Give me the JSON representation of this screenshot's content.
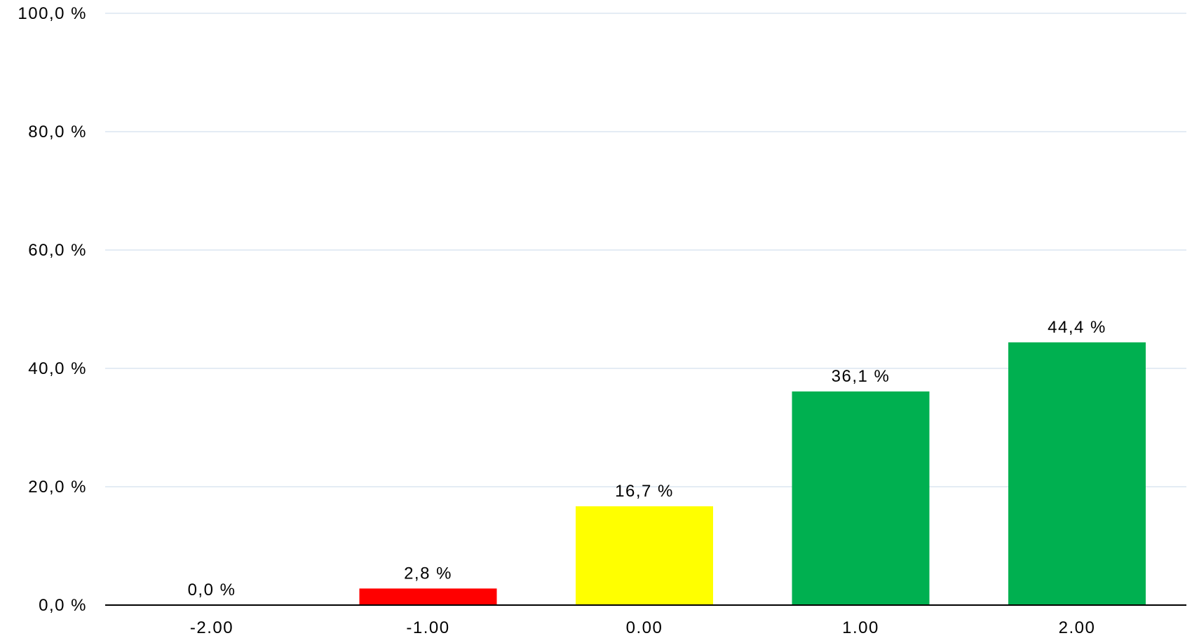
{
  "chart_data": {
    "type": "bar",
    "categories": [
      "-2.00",
      "-1.00",
      "0.00",
      "1.00",
      "2.00"
    ],
    "values": [
      0.0,
      2.8,
      16.7,
      36.1,
      44.4
    ],
    "value_labels": [
      "0,0 %",
      "2,8 %",
      "16,7 %",
      "36,1 %",
      "44,4 %"
    ],
    "bar_colors": [
      "#00B050",
      "#FF0000",
      "#FFFF00",
      "#00B050",
      "#00B050"
    ],
    "y_ticks": [
      {
        "value": 0,
        "label": "0,0 %"
      },
      {
        "value": 20,
        "label": "20,0 %"
      },
      {
        "value": 40,
        "label": "40,0 %"
      },
      {
        "value": 60,
        "label": "60,0 %"
      },
      {
        "value": 80,
        "label": "80,0 %"
      },
      {
        "value": 100,
        "label": "100,0 %"
      }
    ],
    "ylim": [
      0,
      100
    ],
    "grid": true,
    "gridline_color": "#DCE6F0",
    "axis_color": "#000000",
    "title": "",
    "xlabel": "",
    "ylabel": ""
  }
}
